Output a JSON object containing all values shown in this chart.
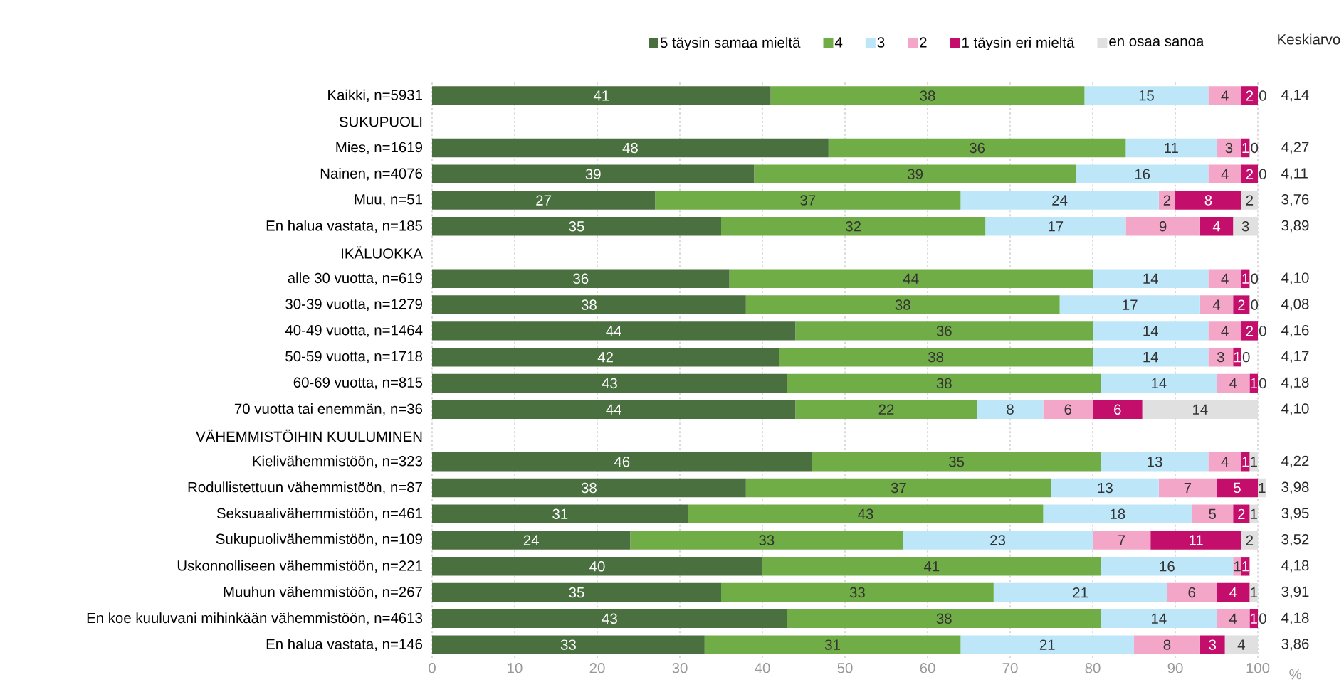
{
  "chart_data": {
    "type": "bar",
    "orientation": "horizontal",
    "stacked": true,
    "data_labels": true,
    "grid": "x",
    "legend": "top",
    "xlabel": "%",
    "categories": [
      "Kaikki, n=5931",
      "SUKUPUOLI",
      "Mies, n=1619",
      "Nainen, n=4076",
      "Muu, n=51",
      "En halua vastata, n=185",
      "IKÄLUOKKA",
      "alle 30 vuotta, n=619",
      "30-39 vuotta, n=1279",
      "40-49 vuotta, n=1464",
      "50-59 vuotta, n=1718",
      "60-69 vuotta, n=815",
      "70 vuotta tai enemmän, n=36",
      "VÄHEMMISTÖIHIN KUULUMINEN",
      "Kielivähemmistöön, n=323",
      "Rodullistettuun vähemmistöön, n=87",
      "Seksuaalivähemmistöön, n=461",
      "Sukupuolivähemmistöön, n=109",
      "Uskonnolliseen vähemmistöön, n=221",
      "Muuhun vähemmistöön, n=267",
      "En koe kuuluvani mihinkään vähemmistöön, n=4613",
      "En halua vastata, n=146"
    ],
    "xlim": [
      0,
      101
    ],
    "xticks": [
      0,
      10,
      20,
      30,
      40,
      50,
      60,
      70,
      80,
      90,
      100
    ],
    "series": [
      {
        "name": "5 täysin samaa mieltä",
        "color": "#4a7040",
        "values": [
          41,
          null,
          48,
          39,
          27,
          35,
          null,
          36,
          38,
          44,
          42,
          43,
          44,
          null,
          46,
          38,
          31,
          24,
          40,
          35,
          43,
          33
        ]
      },
      {
        "name": "4",
        "color": "#70ad47",
        "values": [
          38,
          null,
          36,
          39,
          37,
          32,
          null,
          44,
          38,
          36,
          38,
          38,
          22,
          null,
          35,
          37,
          43,
          33,
          41,
          33,
          38,
          31
        ]
      },
      {
        "name": "3",
        "color": "#bde7f9",
        "values": [
          15,
          null,
          11,
          16,
          24,
          17,
          null,
          14,
          17,
          14,
          14,
          14,
          8,
          null,
          13,
          13,
          18,
          23,
          16,
          21,
          14,
          21
        ]
      },
      {
        "name": "2",
        "color": "#f4a6c8",
        "values": [
          4,
          null,
          3,
          4,
          2,
          9,
          null,
          4,
          4,
          4,
          3,
          4,
          6,
          null,
          4,
          7,
          5,
          7,
          1,
          6,
          4,
          8
        ]
      },
      {
        "name": "1 täysin eri mieltä",
        "color": "#c40e6c",
        "values": [
          2,
          null,
          1,
          2,
          8,
          4,
          null,
          1,
          2,
          2,
          1,
          1,
          6,
          null,
          1,
          5,
          2,
          11,
          1,
          4,
          1,
          3
        ]
      },
      {
        "name": "en osaa sanoa",
        "color": "#e0e0e0",
        "values": [
          0,
          null,
          0,
          0,
          2,
          3,
          null,
          0,
          0,
          0,
          0,
          0,
          14,
          null,
          1,
          1,
          1,
          2,
          null,
          1,
          0,
          4
        ]
      }
    ],
    "annotations": [
      "Keskiarvo",
      "4,14",
      "4,27",
      "4,11",
      "3,76",
      "3,89",
      "4,10",
      "4,08",
      "4,16",
      "4,17",
      "4,18",
      "4,10",
      "4,22",
      "3,98",
      "3,95",
      "3,52",
      "4,18",
      "3,91",
      "4,18",
      "3,86"
    ]
  }
}
